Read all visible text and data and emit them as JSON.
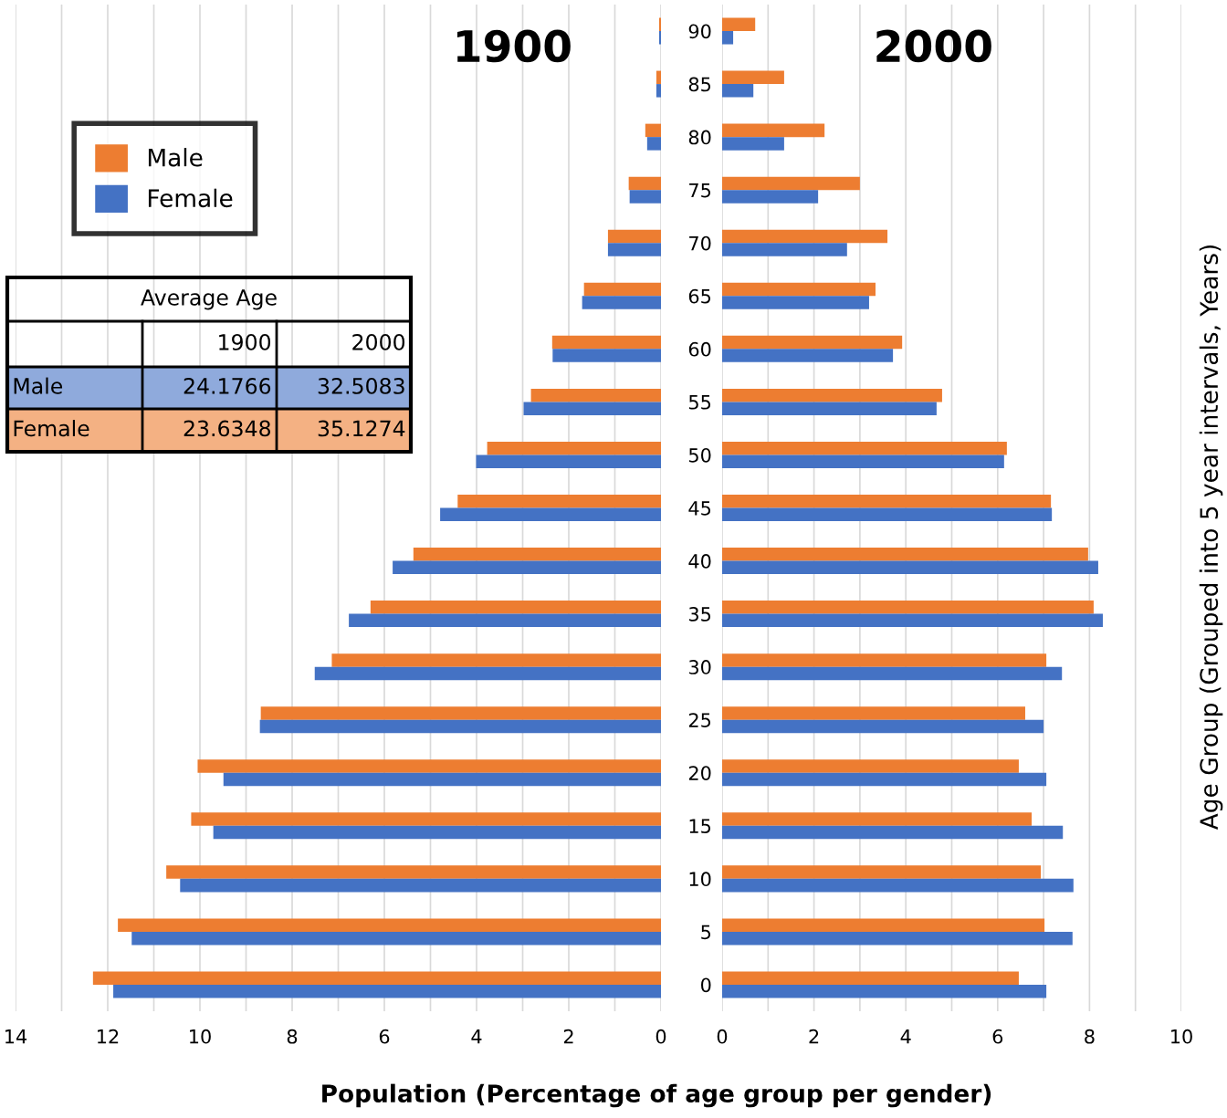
{
  "chart_data": [
    {
      "type": "bar",
      "orientation": "horizontal",
      "title": "1900",
      "xlabel": "Population (Percentage of age group per gender)",
      "categories": [
        "90",
        "85",
        "80",
        "75",
        "70",
        "65",
        "60",
        "55",
        "50",
        "45",
        "40",
        "35",
        "30",
        "25",
        "20",
        "15",
        "10",
        "5",
        "0"
      ],
      "series": [
        {
          "name": "Male",
          "color": "#ed7d31",
          "values": [
            0.04,
            0.1,
            0.34,
            0.7,
            1.15,
            1.67,
            2.36,
            2.82,
            3.77,
            4.41,
            5.37,
            6.3,
            7.14,
            8.68,
            10.05,
            10.19,
            10.73,
            11.78,
            12.32
          ]
        },
        {
          "name": "Female",
          "color": "#4472c4",
          "values": [
            0.04,
            0.1,
            0.3,
            0.68,
            1.15,
            1.71,
            2.35,
            2.98,
            4.01,
            4.79,
            5.82,
            6.77,
            7.51,
            8.7,
            9.49,
            9.71,
            10.43,
            11.48,
            11.88
          ]
        }
      ],
      "xlim": [
        14,
        0
      ],
      "xticks": [
        14,
        12,
        10,
        8,
        6,
        4,
        2,
        0
      ],
      "grid": "x",
      "legend": "top left",
      "tick_labels": "x",
      "annotations": [
        "Average Age",
        "1900",
        "2000",
        "Male",
        "24.1766",
        "32.5083",
        "Female",
        "23.6348",
        "35.1274"
      ]
    },
    {
      "type": "bar",
      "orientation": "horizontal",
      "title": "2000",
      "ylabel": "Age Group (Grouped into 5 year intervals, Years)",
      "categories": [
        "90",
        "85",
        "80",
        "75",
        "70",
        "65",
        "60",
        "55",
        "50",
        "45",
        "40",
        "35",
        "30",
        "25",
        "20",
        "15",
        "10",
        "5",
        "0"
      ],
      "series": [
        {
          "color": "#ed7d31",
          "values": [
            0.72,
            1.35,
            2.23,
            3.0,
            3.6,
            3.34,
            3.92,
            4.79,
            6.2,
            7.16,
            7.97,
            8.09,
            7.06,
            6.6,
            6.46,
            6.74,
            6.94,
            7.02,
            6.46
          ]
        },
        {
          "color": "#4472c4",
          "values": [
            0.24,
            0.68,
            1.35,
            2.09,
            2.72,
            3.2,
            3.72,
            4.67,
            6.14,
            7.18,
            8.19,
            8.29,
            7.4,
            7.0,
            7.06,
            7.42,
            7.65,
            7.63,
            7.06
          ]
        }
      ],
      "xlim": [
        0,
        10
      ],
      "xticks": [
        0,
        2,
        4,
        6,
        8,
        10
      ],
      "grid": "x"
    }
  ]
}
